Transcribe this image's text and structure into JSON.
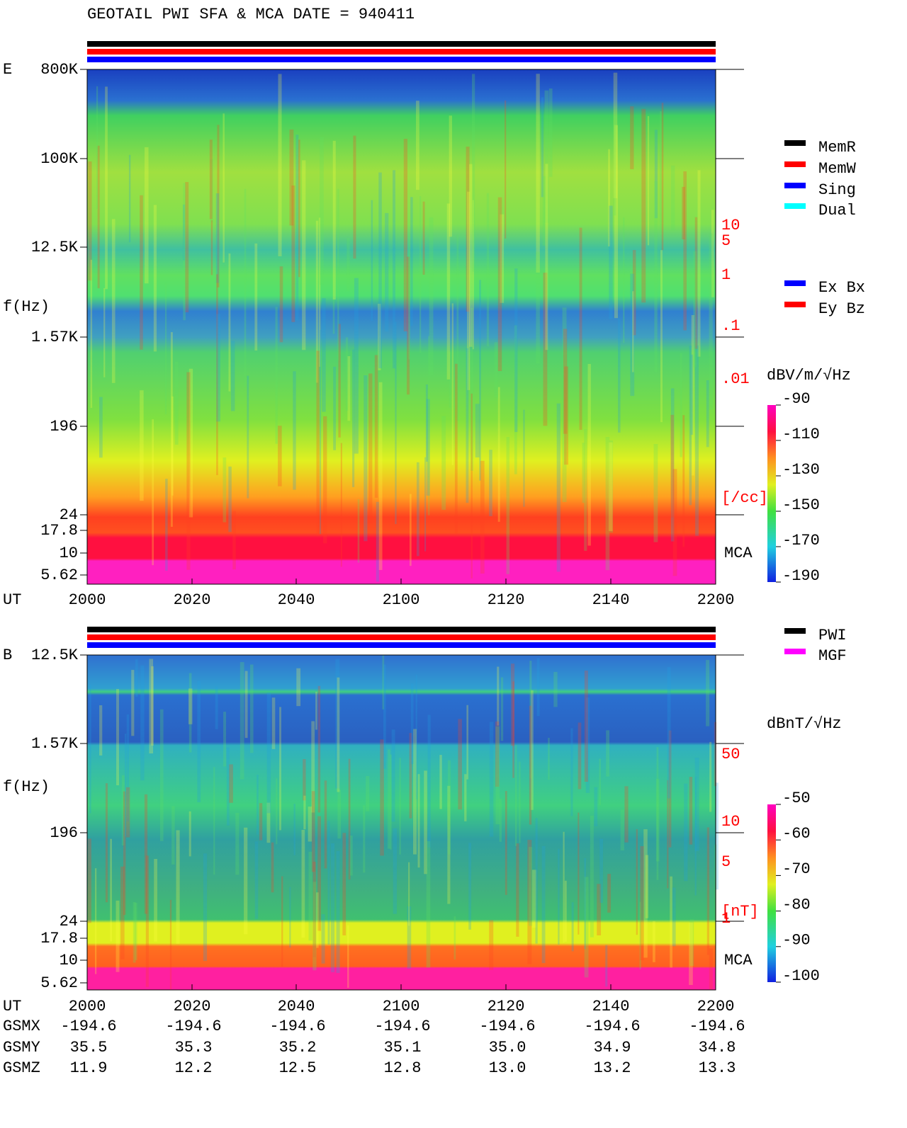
{
  "title": "GEOTAIL  PWI SFA & MCA   DATE = 940411",
  "panels": [
    {
      "label": "E",
      "ylabel": "f(Hz)",
      "freq_labels": [
        "800K",
        "100K",
        "12.5K",
        "1.57K",
        "196",
        "24",
        "17.8",
        "10",
        "5.62"
      ],
      "time_label": "UT",
      "time_labels": [
        "2000",
        "2020",
        "2040",
        "2100",
        "2120",
        "2140",
        "2200"
      ],
      "right_labels": [
        "10",
        "5",
        "1",
        ".1",
        ".01",
        "[/cc]"
      ],
      "mca": "MCA",
      "colorbar": {
        "title": "dBV/m/√Hz",
        "labels": [
          "-90",
          "-110",
          "-130",
          "-150",
          "-170",
          "-190"
        ]
      }
    },
    {
      "label": "B",
      "ylabel": "f(Hz)",
      "freq_labels": [
        "12.5K",
        "1.57K",
        "196",
        "24",
        "17.8",
        "10",
        "5.62"
      ],
      "time_label": "UT",
      "time_labels": [
        "2000",
        "2020",
        "2040",
        "2100",
        "2120",
        "2140",
        "2200"
      ],
      "right_labels": [
        "50",
        "10",
        "5",
        "[nT]",
        "1"
      ],
      "mca": "MCA",
      "colorbar": {
        "title": "dBnT/√Hz",
        "labels": [
          "-50",
          "-60",
          "-70",
          "-80",
          "-90",
          "-100"
        ]
      }
    }
  ],
  "legend_status": [
    "MemR",
    "MemW",
    "Sing",
    "Dual"
  ],
  "legend_components": [
    "Ex Bx",
    "Ey Bz"
  ],
  "legend_source": [
    "PWI",
    "MGF"
  ],
  "orbit": [
    {
      "label": "GSMX",
      "values": [
        "-194.6",
        "-194.6",
        "-194.6",
        "-194.6",
        "-194.6",
        "-194.6",
        "-194.6"
      ]
    },
    {
      "label": "GSMY",
      "values": [
        "35.5",
        "35.3",
        "35.2",
        "35.1",
        "35.0",
        "34.9",
        "34.8"
      ]
    },
    {
      "label": "GSMZ",
      "values": [
        "11.9",
        "12.2",
        "12.5",
        "12.8",
        "13.0",
        "13.2",
        "13.3"
      ]
    }
  ]
}
